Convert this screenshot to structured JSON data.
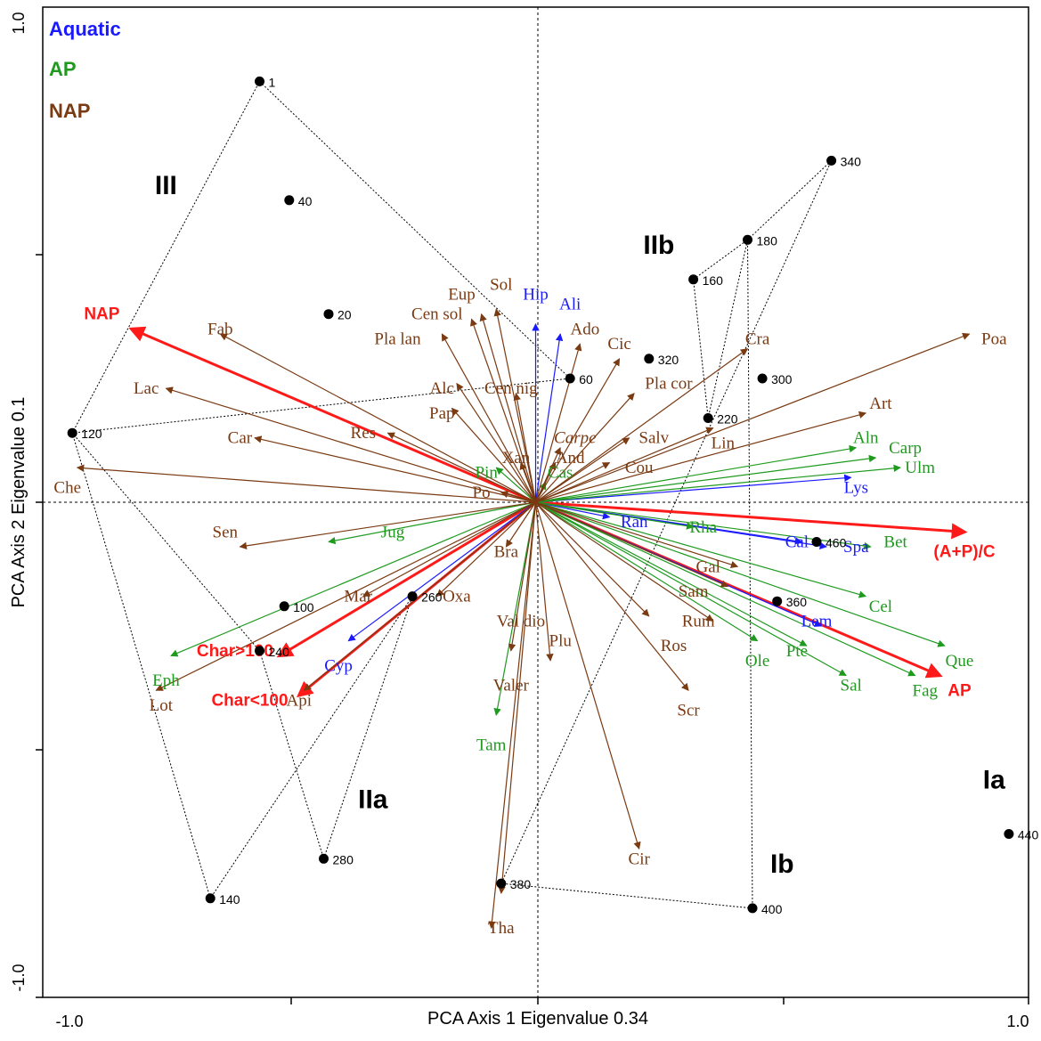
{
  "chart_data": {
    "type": "scatter",
    "subtype": "pca-biplot",
    "title": "",
    "xlabel": "PCA Axis 1 Eigenvalue 0.34",
    "ylabel": "PCA Axis 2 Eigenvalue 0.1",
    "xlim": [
      -1.0,
      1.0
    ],
    "ylim": [
      -1.0,
      1.0
    ],
    "x_tick_labels": [
      "-1.0",
      "1.0"
    ],
    "y_tick_labels": [
      "1.0",
      "-1.0"
    ],
    "grid": false,
    "zero_lines": "dashed",
    "colors": {
      "aquatic": "#1a1aff",
      "ap": "#1f9a1f",
      "nap": "#7a3a12",
      "summary": "#ff1a1a",
      "sample": "#000000"
    },
    "legend": {
      "placement": "top-left",
      "entries": [
        {
          "label": "Aquatic",
          "group": "aquatic"
        },
        {
          "label": "AP",
          "group": "ap"
        },
        {
          "label": "NAP",
          "group": "nap"
        }
      ]
    },
    "samples": [
      {
        "label": "1",
        "x": -0.56,
        "y": 0.85
      },
      {
        "label": "20",
        "x": -0.42,
        "y": 0.38
      },
      {
        "label": "40",
        "x": -0.5,
        "y": 0.61
      },
      {
        "label": "60",
        "x": 0.07,
        "y": 0.25
      },
      {
        "label": "100",
        "x": -0.51,
        "y": -0.21
      },
      {
        "label": "120",
        "x": -0.94,
        "y": 0.14
      },
      {
        "label": "140",
        "x": -0.66,
        "y": -0.8
      },
      {
        "label": "160",
        "x": 0.32,
        "y": 0.45
      },
      {
        "label": "180",
        "x": 0.43,
        "y": 0.53
      },
      {
        "label": "220",
        "x": 0.35,
        "y": 0.17
      },
      {
        "label": "240",
        "x": -0.56,
        "y": -0.3
      },
      {
        "label": "260",
        "x": -0.25,
        "y": -0.19
      },
      {
        "label": "280",
        "x": -0.43,
        "y": -0.72
      },
      {
        "label": "300",
        "x": 0.46,
        "y": 0.25
      },
      {
        "label": "320",
        "x": 0.23,
        "y": 0.29
      },
      {
        "label": "340",
        "x": 0.6,
        "y": 0.69
      },
      {
        "label": "360",
        "x": 0.49,
        "y": -0.2
      },
      {
        "label": "380",
        "x": -0.07,
        "y": -0.77
      },
      {
        "label": "400",
        "x": 0.44,
        "y": -0.82
      },
      {
        "label": "440",
        "x": 0.96,
        "y": -0.67
      },
      {
        "label": "460",
        "x": 0.57,
        "y": -0.08
      }
    ],
    "groups": [
      {
        "label": "III",
        "x": -0.75,
        "y": 0.64
      },
      {
        "label": "IIb",
        "x": 0.25,
        "y": 0.52
      },
      {
        "label": "IIa",
        "x": -0.33,
        "y": -0.6
      },
      {
        "label": "Ib",
        "x": 0.5,
        "y": -0.73
      },
      {
        "label": "Ia",
        "x": 0.93,
        "y": -0.56
      }
    ],
    "hulls": [
      {
        "name": "III",
        "samples": [
          "1",
          "60",
          "120"
        ]
      },
      {
        "name": "IIb",
        "samples": [
          "160",
          "180",
          "220"
        ]
      },
      {
        "name": "IIa",
        "samples": [
          "260",
          "140",
          "120",
          "240",
          "280"
        ]
      },
      {
        "name": "Ib",
        "samples": [
          "340",
          "180",
          "400",
          "380"
        ]
      },
      {
        "name": "Ia",
        "samples": [
          "440"
        ]
      }
    ],
    "vectors": [
      {
        "label": "NAP",
        "group": "summary",
        "x": -0.82,
        "y": 0.35,
        "lx": -0.88,
        "ly": 0.38
      },
      {
        "label": "(A+P)/C",
        "group": "summary",
        "x": 0.87,
        "y": -0.06,
        "lx": 0.87,
        "ly": -0.1
      },
      {
        "label": "AP",
        "group": "summary",
        "x": 0.82,
        "y": -0.35,
        "lx": 0.86,
        "ly": -0.38
      },
      {
        "label": "Char>100",
        "group": "summary",
        "x": -0.52,
        "y": -0.31,
        "lx": -0.61,
        "ly": -0.3
      },
      {
        "label": "Char<100",
        "group": "summary",
        "x": -0.48,
        "y": -0.39,
        "lx": -0.58,
        "ly": -0.4
      },
      {
        "label": "Hip",
        "group": "aquatic",
        "x": 0.0,
        "y": 0.36,
        "lx": 0.0,
        "ly": 0.42
      },
      {
        "label": "Ali",
        "group": "aquatic",
        "x": 0.05,
        "y": 0.34,
        "lx": 0.07,
        "ly": 0.4
      },
      {
        "label": "Ran",
        "group": "aquatic",
        "x": 0.15,
        "y": -0.03,
        "lx": 0.2,
        "ly": -0.04
      },
      {
        "label": "Lys",
        "group": "aquatic",
        "x": 0.64,
        "y": 0.05,
        "lx": 0.65,
        "ly": 0.03
      },
      {
        "label": "Cal",
        "group": "aquatic",
        "x": 0.54,
        "y": -0.08,
        "lx": 0.53,
        "ly": -0.08
      },
      {
        "label": "Spa",
        "group": "aquatic",
        "x": 0.59,
        "y": -0.09,
        "lx": 0.65,
        "ly": -0.09
      },
      {
        "label": "Lem",
        "group": "aquatic",
        "x": 0.58,
        "y": -0.25,
        "lx": 0.57,
        "ly": -0.24
      },
      {
        "label": "Cyp",
        "group": "aquatic",
        "x": -0.38,
        "y": -0.28,
        "lx": -0.4,
        "ly": -0.33
      },
      {
        "label": "Pin",
        "group": "ap",
        "x": -0.08,
        "y": 0.07,
        "lx": -0.1,
        "ly": 0.06
      },
      {
        "label": "Cas",
        "group": "ap",
        "x": 0.02,
        "y": 0.04,
        "lx": 0.05,
        "ly": 0.06
      },
      {
        "label": "Jug",
        "group": "ap",
        "x": -0.42,
        "y": -0.08,
        "lx": -0.29,
        "ly": -0.06
      },
      {
        "label": "Eph",
        "group": "ap",
        "x": -0.74,
        "y": -0.31,
        "lx": -0.75,
        "ly": -0.36
      },
      {
        "label": "Tam",
        "group": "ap",
        "x": -0.08,
        "y": -0.43,
        "lx": -0.09,
        "ly": -0.49
      },
      {
        "label": "Rha",
        "group": "ap",
        "x": 0.32,
        "y": -0.05,
        "lx": 0.34,
        "ly": -0.05
      },
      {
        "label": "Aln",
        "group": "ap",
        "x": 0.65,
        "y": 0.11,
        "lx": 0.67,
        "ly": 0.13
      },
      {
        "label": "Carp",
        "group": "ap",
        "x": 0.69,
        "y": 0.09,
        "lx": 0.75,
        "ly": 0.11
      },
      {
        "label": "Ulm",
        "group": "ap",
        "x": 0.74,
        "y": 0.07,
        "lx": 0.78,
        "ly": 0.07
      },
      {
        "label": "Bet",
        "group": "ap",
        "x": 0.68,
        "y": -0.09,
        "lx": 0.73,
        "ly": -0.08
      },
      {
        "label": "Cel",
        "group": "ap",
        "x": 0.67,
        "y": -0.19,
        "lx": 0.7,
        "ly": -0.21
      },
      {
        "label": "Que",
        "group": "ap",
        "x": 0.83,
        "y": -0.29,
        "lx": 0.86,
        "ly": -0.32
      },
      {
        "label": "Fag",
        "group": "ap",
        "x": 0.77,
        "y": -0.35,
        "lx": 0.79,
        "ly": -0.38
      },
      {
        "label": "Sal",
        "group": "ap",
        "x": 0.63,
        "y": -0.35,
        "lx": 0.64,
        "ly": -0.37
      },
      {
        "label": "Pte",
        "group": "ap",
        "x": 0.55,
        "y": -0.29,
        "lx": 0.53,
        "ly": -0.3
      },
      {
        "label": "Ole",
        "group": "ap",
        "x": 0.45,
        "y": -0.28,
        "lx": 0.45,
        "ly": -0.32
      },
      {
        "label": "Poa",
        "group": "nap",
        "x": 0.88,
        "y": 0.34,
        "lx": 0.93,
        "ly": 0.33
      },
      {
        "label": "Art",
        "group": "nap",
        "x": 0.67,
        "y": 0.18,
        "lx": 0.7,
        "ly": 0.2
      },
      {
        "label": "Cra",
        "group": "nap",
        "x": 0.43,
        "y": 0.31,
        "lx": 0.45,
        "ly": 0.33
      },
      {
        "label": "Lin",
        "group": "nap",
        "x": 0.36,
        "y": 0.15,
        "lx": 0.38,
        "ly": 0.12
      },
      {
        "label": "Salv",
        "group": "nap",
        "x": 0.19,
        "y": 0.13,
        "lx": 0.24,
        "ly": 0.13
      },
      {
        "label": "Cou",
        "group": "nap",
        "x": 0.15,
        "y": 0.08,
        "lx": 0.21,
        "ly": 0.07
      },
      {
        "label": "Pla cor",
        "group": "nap",
        "x": 0.2,
        "y": 0.22,
        "lx": 0.27,
        "ly": 0.24
      },
      {
        "label": "Cic",
        "group": "nap",
        "x": 0.17,
        "y": 0.29,
        "lx": 0.17,
        "ly": 0.32
      },
      {
        "label": "Ado",
        "group": "nap",
        "x": 0.09,
        "y": 0.32,
        "lx": 0.1,
        "ly": 0.35
      },
      {
        "label": "Carpe",
        "group": "nap",
        "x": 0.05,
        "y": 0.11,
        "lx": 0.08,
        "ly": 0.13
      },
      {
        "label": "And",
        "group": "nap",
        "x": 0.04,
        "y": 0.08,
        "lx": 0.07,
        "ly": 0.09
      },
      {
        "label": "Xan",
        "group": "nap",
        "x": -0.03,
        "y": 0.08,
        "lx": -0.04,
        "ly": 0.09
      },
      {
        "label": "Cen nig",
        "group": "nap",
        "x": -0.04,
        "y": 0.22,
        "lx": -0.05,
        "ly": 0.23
      },
      {
        "label": "Sol",
        "group": "nap",
        "x": -0.08,
        "y": 0.39,
        "lx": -0.07,
        "ly": 0.44
      },
      {
        "label": "Eup",
        "group": "nap",
        "x": -0.11,
        "y": 0.38,
        "lx": -0.15,
        "ly": 0.42
      },
      {
        "label": "Cen sol",
        "group": "nap",
        "x": -0.13,
        "y": 0.37,
        "lx": -0.2,
        "ly": 0.38
      },
      {
        "label": "Pla lan",
        "group": "nap",
        "x": -0.19,
        "y": 0.34,
        "lx": -0.28,
        "ly": 0.33
      },
      {
        "label": "Alc",
        "group": "nap",
        "x": -0.16,
        "y": 0.24,
        "lx": -0.19,
        "ly": 0.23
      },
      {
        "label": "Pap",
        "group": "nap",
        "x": -0.17,
        "y": 0.19,
        "lx": -0.19,
        "ly": 0.18
      },
      {
        "label": "Res",
        "group": "nap",
        "x": -0.3,
        "y": 0.14,
        "lx": -0.35,
        "ly": 0.14
      },
      {
        "label": "Fab",
        "group": "nap",
        "x": -0.64,
        "y": 0.34,
        "lx": -0.64,
        "ly": 0.35
      },
      {
        "label": "Lac",
        "group": "nap",
        "x": -0.75,
        "y": 0.23,
        "lx": -0.79,
        "ly": 0.23
      },
      {
        "label": "Car",
        "group": "nap",
        "x": -0.57,
        "y": 0.13,
        "lx": -0.6,
        "ly": 0.13
      },
      {
        "label": "Che",
        "group": "nap",
        "x": -0.93,
        "y": 0.07,
        "lx": -0.95,
        "ly": 0.03
      },
      {
        "label": "Po",
        "group": "nap",
        "x": -0.07,
        "y": 0.02,
        "lx": -0.11,
        "ly": 0.02
      },
      {
        "label": "Sen",
        "group": "nap",
        "x": -0.6,
        "y": -0.09,
        "lx": -0.63,
        "ly": -0.06
      },
      {
        "label": "Mar",
        "group": "nap",
        "x": -0.35,
        "y": -0.19,
        "lx": -0.36,
        "ly": -0.19
      },
      {
        "label": "Bra",
        "group": "nap",
        "x": -0.06,
        "y": -0.09,
        "lx": -0.06,
        "ly": -0.1
      },
      {
        "label": "Oxa",
        "group": "nap",
        "x": -0.2,
        "y": -0.19,
        "lx": -0.16,
        "ly": -0.19
      },
      {
        "label": "Val dio",
        "group": "nap",
        "x": -0.05,
        "y": -0.3,
        "lx": -0.03,
        "ly": -0.24
      },
      {
        "label": "Plu",
        "group": "nap",
        "x": 0.03,
        "y": -0.32,
        "lx": 0.05,
        "ly": -0.28
      },
      {
        "label": "Valer",
        "group": "nap",
        "x": -0.07,
        "y": -0.79,
        "lx": -0.05,
        "ly": -0.37
      },
      {
        "label": "Tha",
        "group": "nap",
        "x": -0.09,
        "y": -0.86,
        "lx": -0.07,
        "ly": -0.86
      },
      {
        "label": "Lot",
        "group": "nap",
        "x": -0.77,
        "y": -0.38,
        "lx": -0.76,
        "ly": -0.41
      },
      {
        "label": "Api",
        "group": "nap",
        "x": -0.47,
        "y": -0.38,
        "lx": -0.48,
        "ly": -0.4
      },
      {
        "label": "Ros",
        "group": "nap",
        "x": 0.23,
        "y": -0.23,
        "lx": 0.28,
        "ly": -0.29
      },
      {
        "label": "Rum",
        "group": "nap",
        "x": 0.36,
        "y": -0.24,
        "lx": 0.33,
        "ly": -0.24
      },
      {
        "label": "Sam",
        "group": "nap",
        "x": 0.39,
        "y": -0.17,
        "lx": 0.32,
        "ly": -0.18
      },
      {
        "label": "Gal",
        "group": "nap",
        "x": 0.41,
        "y": -0.13,
        "lx": 0.35,
        "ly": -0.13
      },
      {
        "label": "Scr",
        "group": "nap",
        "x": 0.31,
        "y": -0.38,
        "lx": 0.31,
        "ly": -0.42
      },
      {
        "label": "Cir",
        "group": "nap",
        "x": 0.21,
        "y": -0.7,
        "lx": 0.21,
        "ly": -0.72
      }
    ]
  }
}
